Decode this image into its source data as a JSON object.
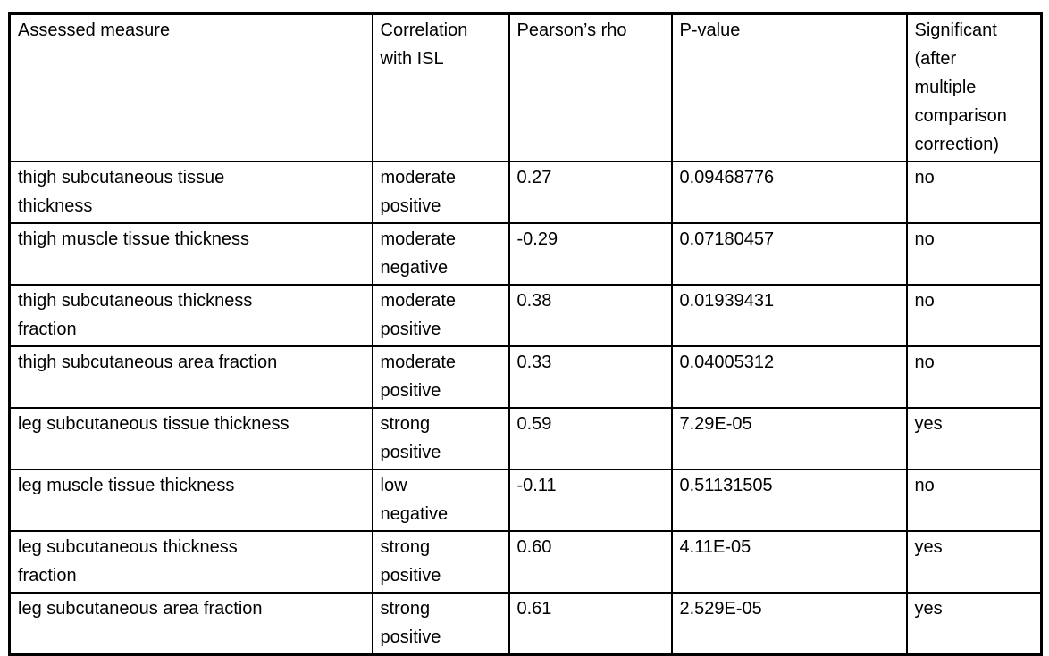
{
  "page": {
    "background_color": "#ffffff",
    "text_color": "#000000",
    "border_color": "#000000"
  },
  "table": {
    "headers": {
      "measure": "Assessed measure",
      "correlation": "Correlation\nwith ISL",
      "rho": "Pearson’s rho",
      "p_value": "P-value",
      "significant": "Significant\n(after\nmultiple\ncomparison\ncorrection)"
    },
    "rows": [
      {
        "measure": "thigh subcutaneous tissue\nthickness",
        "correlation": "moderate\npositive",
        "rho": "0.27",
        "p_value": "0.09468776",
        "significant": "no"
      },
      {
        "measure": "thigh muscle tissue thickness",
        "correlation": "moderate\nnegative",
        "rho": "-0.29",
        "p_value": "0.07180457",
        "significant": "no"
      },
      {
        "measure": "thigh subcutaneous thickness\nfraction",
        "correlation": "moderate\npositive",
        "rho": "0.38",
        "p_value": "0.01939431",
        "significant": "no"
      },
      {
        "measure": "thigh subcutaneous area fraction",
        "correlation": "moderate\npositive",
        "rho": "0.33",
        "p_value": "0.04005312",
        "significant": "no"
      },
      {
        "measure": "leg subcutaneous tissue thickness",
        "correlation": "strong\npositive",
        "rho": "0.59",
        "p_value": "7.29E-05",
        "significant": "yes"
      },
      {
        "measure": "leg muscle tissue thickness",
        "correlation": "low\nnegative",
        "rho": "-0.11",
        "p_value": "0.51131505",
        "significant": "no"
      },
      {
        "measure": "leg subcutaneous thickness\nfraction",
        "correlation": "strong\npositive",
        "rho": "0.60",
        "p_value": "4.11E-05",
        "significant": "yes"
      },
      {
        "measure": "leg subcutaneous area fraction",
        "correlation": "strong\npositive",
        "rho": "0.61",
        "p_value": "2.529E-05",
        "significant": "yes"
      }
    ]
  }
}
